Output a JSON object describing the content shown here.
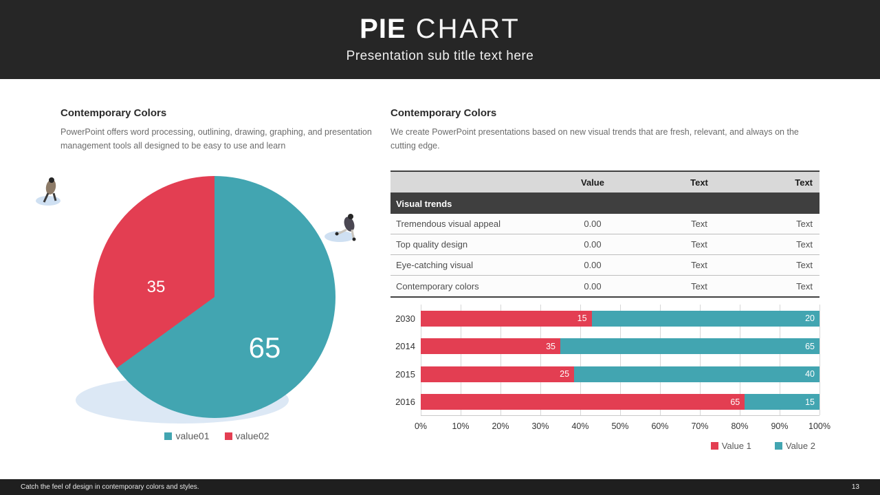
{
  "header": {
    "title_bold": "PIE",
    "title_light": " CHART",
    "subtitle": "Presentation sub title text here"
  },
  "left": {
    "heading": "Contemporary Colors",
    "body": "PowerPoint offers word processing, outlining, drawing, graphing, and presentation management tools all designed to be easy to use and learn"
  },
  "right": {
    "heading": "Contemporary Colors",
    "body": "We create PowerPoint presentations based on new visual trends that are fresh, relevant, and always on the cutting edge.",
    "table": {
      "columns": [
        "",
        "Value",
        "Text",
        "Text"
      ],
      "section_label": "Visual trends",
      "rows": [
        [
          "Tremendous visual appeal",
          "0.00",
          "Text",
          "Text"
        ],
        [
          "Top quality design",
          "0.00",
          "Text",
          "Text"
        ],
        [
          "Eye-catching visual",
          "0.00",
          "Text",
          "Text"
        ],
        [
          "Contemporary colors",
          "0.00",
          "Text",
          "Text"
        ]
      ]
    }
  },
  "colors": {
    "teal": "#42A5B1",
    "red": "#E33E52",
    "header_bg": "#262626",
    "table_header_bg": "#D9D9D9",
    "table_section_bg": "#3F3F3F",
    "shadow_blue": "#DCE8F5"
  },
  "chart_data": [
    {
      "type": "pie",
      "labels": [
        "value01",
        "value02"
      ],
      "values": [
        65,
        35
      ],
      "colors": [
        "#42A5B1",
        "#E33E52"
      ],
      "data_labels": [
        "65",
        "35"
      ],
      "legend_position": "bottom",
      "start_angle_deg": 0,
      "direction": "clockwise"
    },
    {
      "type": "bar",
      "orientation": "horizontal",
      "stacked": true,
      "axis_mode": "percent_of_total",
      "categories": [
        "2030",
        "2014",
        "2015",
        "2016"
      ],
      "series": [
        {
          "name": "Value 1",
          "color": "#E33E52",
          "values": [
            15,
            35,
            25,
            65
          ]
        },
        {
          "name": "Value 2",
          "color": "#42A5B1",
          "values": [
            20,
            65,
            40,
            15
          ]
        }
      ],
      "x_ticks": [
        "0%",
        "10%",
        "20%",
        "30%",
        "40%",
        "50%",
        "60%",
        "70%",
        "80%",
        "90%",
        "100%"
      ],
      "xlim": [
        0,
        100
      ],
      "grid": true,
      "legend_position": "bottom-right"
    }
  ],
  "footer": {
    "note": "Catch the feel of design in contemporary colors and styles.",
    "page": "13"
  }
}
